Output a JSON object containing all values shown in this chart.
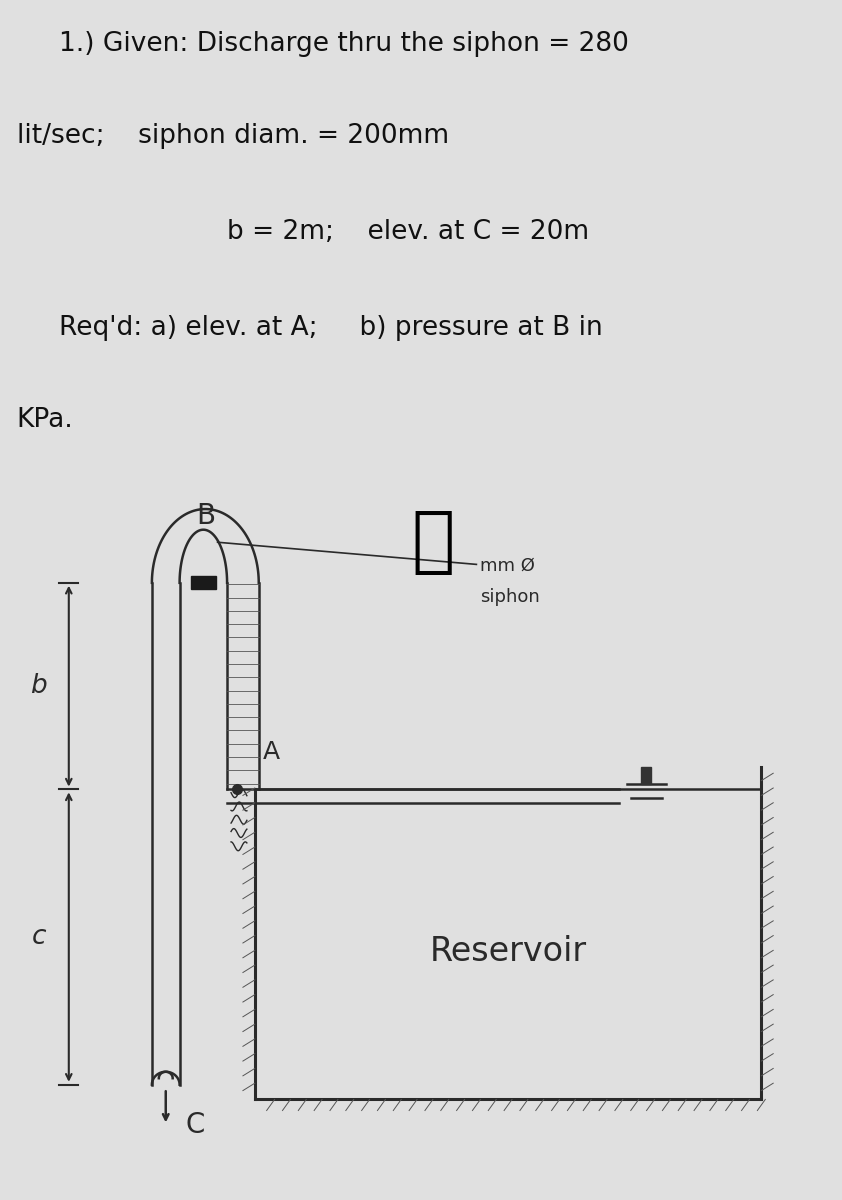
{
  "bg_top": "#e0e0e0",
  "bg_diagram": "#c8c4bc",
  "text_color": "#111111",
  "line1": "1.) Given: Discharge thru the siphon = 280",
  "line2": "lit/sec;    siphon diam. = 200mm",
  "line3": "b = 2m;    elev. at C = 20m",
  "line4": "Req'd: a) elev. at A;     b) pressure at B in",
  "line5": "KPa.",
  "label_B": "B",
  "label_A": "A",
  "label_b": "b",
  "label_c": "c",
  "label_C": "C",
  "label_siphon": "siphon",
  "label_mm": "mm Ø",
  "label_reservoir": "Reservoir",
  "fs_text": 19,
  "fs_label": 17,
  "fs_reservoir": 24
}
